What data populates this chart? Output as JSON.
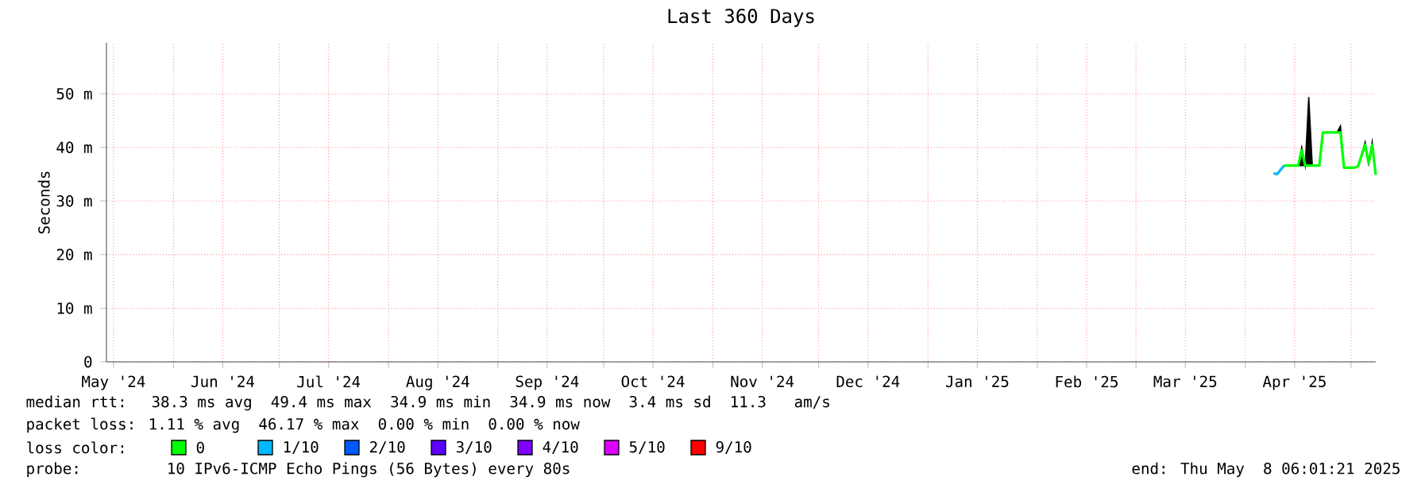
{
  "chart_data": {
    "type": "line",
    "title": "Last 360 Days",
    "ylabel": "Seconds",
    "x": [
      "2025-04-09",
      "2025-04-10",
      "2025-04-11",
      "2025-04-12",
      "2025-04-13",
      "2025-04-16",
      "2025-04-17",
      "2025-04-18",
      "2025-04-19",
      "2025-04-20",
      "2025-04-22",
      "2025-04-23",
      "2025-04-27",
      "2025-04-28",
      "2025-04-29",
      "2025-05-02",
      "2025-05-03",
      "2025-05-05",
      "2025-05-06",
      "2025-05-07",
      "2025-05-08"
    ],
    "series": [
      {
        "name": "0",
        "color": "#00ff00",
        "values": [
          null,
          null,
          null,
          36.6,
          36.6,
          36.6,
          39.5,
          36.6,
          36.6,
          36.6,
          36.6,
          42.8,
          42.8,
          42.8,
          36.2,
          36.2,
          36.5,
          40.5,
          37,
          40.5,
          34.9
        ],
        "lower": [
          null,
          null,
          null,
          36.6,
          36.6,
          36.6,
          36.6,
          36.6,
          36.6,
          36.6,
          36.6,
          42.8,
          42.8,
          42.8,
          36.2,
          36.2,
          36.5,
          40.5,
          37,
          40.5,
          34.9
        ],
        "upper": [
          null,
          null,
          null,
          36.6,
          36.6,
          36.6,
          40,
          36.6,
          49.4,
          36.6,
          36.6,
          42.8,
          42.8,
          44,
          36.2,
          36.2,
          36.5,
          41,
          37,
          41,
          34.9
        ]
      },
      {
        "name": "1/10",
        "color": "#00b8ff",
        "values": [
          35.2,
          35,
          35.8,
          36.6,
          null,
          null,
          null,
          null,
          null,
          null,
          null,
          null,
          null,
          null,
          null,
          null,
          null,
          null,
          null,
          null,
          null
        ]
      },
      {
        "name": "2/10",
        "color": "#0059ff",
        "values": [
          null,
          null,
          null,
          null,
          null,
          null,
          null,
          null,
          null,
          null,
          null,
          null,
          null,
          null,
          null,
          null,
          null,
          null,
          null,
          null,
          null
        ]
      },
      {
        "name": "3/10",
        "color": "#5e00ff",
        "values": [
          null,
          null,
          null,
          null,
          null,
          null,
          null,
          null,
          null,
          null,
          null,
          null,
          null,
          null,
          null,
          null,
          null,
          null,
          null,
          null,
          null
        ]
      },
      {
        "name": "4/10",
        "color": "#7e00ff",
        "values": [
          null,
          null,
          null,
          null,
          null,
          null,
          null,
          null,
          null,
          null,
          null,
          null,
          null,
          null,
          null,
          null,
          null,
          null,
          null,
          null,
          null
        ]
      },
      {
        "name": "5/10",
        "color": "#dd00ff",
        "values": [
          null,
          null,
          null,
          null,
          null,
          null,
          null,
          null,
          null,
          null,
          null,
          null,
          null,
          null,
          null,
          null,
          null,
          null,
          null,
          null,
          null
        ]
      },
      {
        "name": "9/10",
        "color": "#ff0000",
        "values": [
          null,
          null,
          null,
          null,
          null,
          null,
          null,
          null,
          null,
          null,
          null,
          null,
          null,
          null,
          null,
          null,
          null,
          null,
          null,
          null,
          null
        ]
      }
    ],
    "legend_title": "loss color:",
    "legend": "bottom",
    "grid": true,
    "xlim": [
      "2024-05-13",
      "2025-05-08"
    ],
    "xticks": [
      {
        "value": "2024-05-15",
        "label": "May '24"
      },
      {
        "value": "2024-06-01",
        "label": null
      },
      {
        "value": "2024-06-15",
        "label": "Jun '24"
      },
      {
        "value": "2024-07-01",
        "label": null
      },
      {
        "value": "2024-07-15",
        "label": "Jul '24"
      },
      {
        "value": "2024-08-01",
        "label": null
      },
      {
        "value": "2024-08-15",
        "label": "Aug '24"
      },
      {
        "value": "2024-09-01",
        "label": null
      },
      {
        "value": "2024-09-15",
        "label": "Sep '24"
      },
      {
        "value": "2024-10-01",
        "label": null
      },
      {
        "value": "2024-10-15",
        "label": "Oct '24"
      },
      {
        "value": "2024-11-01",
        "label": null
      },
      {
        "value": "2024-11-15",
        "label": "Nov '24"
      },
      {
        "value": "2024-12-01",
        "label": null
      },
      {
        "value": "2024-12-15",
        "label": "Dec '24"
      },
      {
        "value": "2025-01-01",
        "label": null
      },
      {
        "value": "2025-01-15",
        "label": "Jan '25"
      },
      {
        "value": "2025-02-01",
        "label": null
      },
      {
        "value": "2025-02-15",
        "label": "Feb '25"
      },
      {
        "value": "2025-03-01",
        "label": null
      },
      {
        "value": "2025-03-15",
        "label": "Mar '25"
      },
      {
        "value": "2025-04-01",
        "label": null
      },
      {
        "value": "2025-04-15",
        "label": "Apr '25"
      },
      {
        "value": "2025-05-01",
        "label": null
      }
    ],
    "ylim": [
      0,
      59.5
    ],
    "yticks": [
      {
        "value": 0,
        "label": "0"
      },
      {
        "value": 10,
        "label": "10 m"
      },
      {
        "value": 20,
        "label": "20 m"
      },
      {
        "value": 30,
        "label": "30 m"
      },
      {
        "value": 40,
        "label": "40 m"
      },
      {
        "value": 50,
        "label": "50 m"
      }
    ],
    "annotations": [
      "median rtt:  38.3 ms avg  49.4 ms max  34.9 ms min  34.9 ms now  3.4 ms sd  11.3   am/s",
      "packet loss: 1.11 % avg  46.17 % max  0.00 % min  0.00 % now",
      "probe:       10 IPv6-ICMP Echo Pings (56 Bytes) every 80s",
      "end: Thu May  8 06:01:21 2025"
    ]
  }
}
